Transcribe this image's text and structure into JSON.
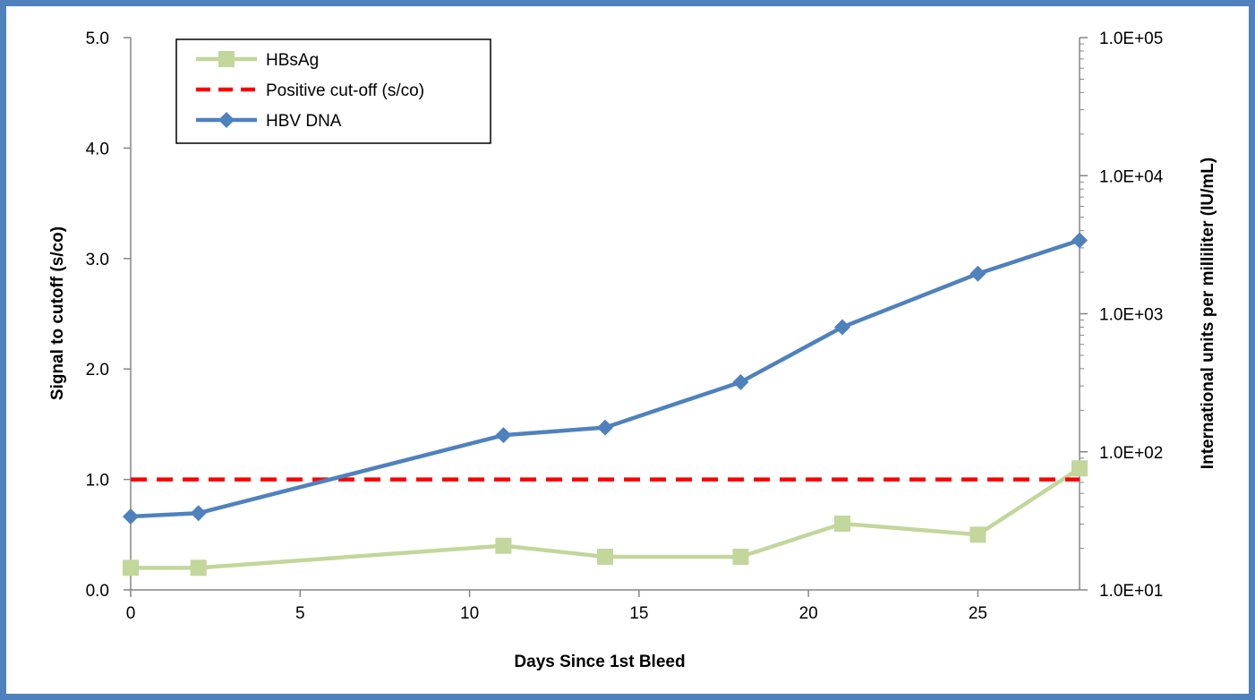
{
  "chart_data": {
    "type": "line",
    "xlabel": "Days Since 1st Bleed",
    "ylabel": "Signal to cutoff (s/co)",
    "y2label": "International units per milliliter (IU/mL)",
    "xlim": [
      0,
      28
    ],
    "ylim": [
      0,
      5
    ],
    "y2lim": [
      10,
      100000
    ],
    "y2_scale": "log",
    "x_ticks": [
      "0",
      "5",
      "10",
      "15",
      "20",
      "25"
    ],
    "y_ticks": [
      "0.0",
      "1.0",
      "2.0",
      "3.0",
      "4.0",
      "5.0"
    ],
    "y2_ticks": [
      "1.0E+01",
      "1.0E+02",
      "1.0E+03",
      "1.0E+04",
      "1.0E+05"
    ],
    "grid": false,
    "legend_position": "top-left",
    "series": [
      {
        "name": "HBsAg",
        "axis": "left",
        "color": "#c3d69b",
        "marker": "square",
        "x": [
          0,
          2,
          11,
          14,
          18,
          21,
          25,
          28
        ],
        "y": [
          0.2,
          0.2,
          0.4,
          0.3,
          0.3,
          0.6,
          0.5,
          1.1
        ]
      },
      {
        "name": "Positive cut-off (s/co)",
        "axis": "left",
        "color": "#ff0000",
        "style": "dashed",
        "x": [
          0,
          28
        ],
        "y": [
          1.0,
          1.0
        ]
      },
      {
        "name": "HBV DNA",
        "axis": "right",
        "color": "#4f81bd",
        "marker": "diamond",
        "x": [
          0,
          2,
          11,
          14,
          18,
          21,
          25,
          28
        ],
        "y": [
          34,
          36,
          132,
          150,
          320,
          800,
          1950,
          3400
        ]
      }
    ]
  }
}
